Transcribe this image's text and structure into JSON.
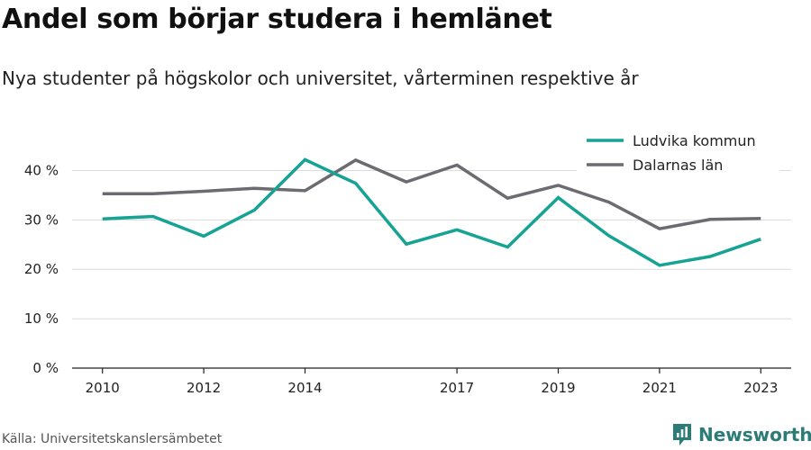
{
  "header": {
    "title": "Andel som börjar studera i hemlänet",
    "subtitle": "Nya studenter på högskolor och universitet, vårterminen respektive år"
  },
  "footer": {
    "source": "Källa: Universitetskanslersämbetet",
    "brand": "Newsworthy",
    "brand_color": "#2b7b77",
    "brand_icon": "newsworthy-logo-icon"
  },
  "chart_data": {
    "type": "line",
    "x": [
      2010,
      2011,
      2012,
      2013,
      2014,
      2015,
      2016,
      2017,
      2018,
      2019,
      2020,
      2021,
      2022,
      2023
    ],
    "x_ticks": [
      2010,
      2012,
      2014,
      2017,
      2019,
      2021,
      2023
    ],
    "y_ticks": [
      0,
      10,
      20,
      30,
      40
    ],
    "y_tick_labels": [
      "0 %",
      "10 %",
      "20 %",
      "30 %",
      "40 %"
    ],
    "ylim": [
      0,
      45
    ],
    "xlim": [
      2009.4,
      2023.6
    ],
    "grid": true,
    "legend_position": "top-right",
    "series": [
      {
        "name": "Ludvika kommun",
        "color": "#16a394",
        "values": [
          30.2,
          30.7,
          26.7,
          32.0,
          42.2,
          37.4,
          25.1,
          28.0,
          24.5,
          34.5,
          26.8,
          20.8,
          22.6,
          26.1
        ]
      },
      {
        "name": "Dalarnas län",
        "color": "#6b6b70",
        "values": [
          35.3,
          35.3,
          35.8,
          36.4,
          35.9,
          42.1,
          37.7,
          41.1,
          34.4,
          37.0,
          33.6,
          28.2,
          30.1,
          30.3
        ]
      }
    ]
  }
}
